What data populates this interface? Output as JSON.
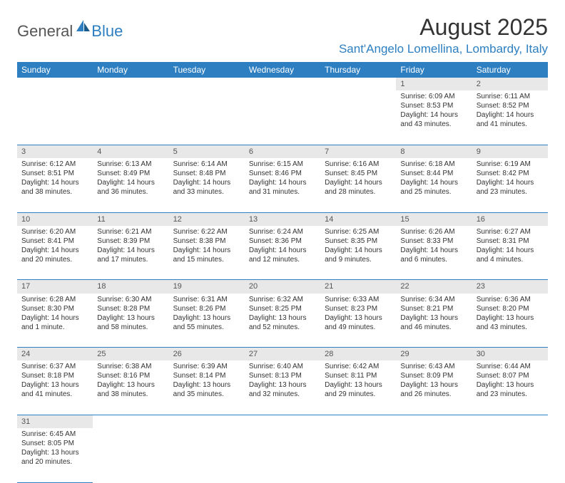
{
  "logo": {
    "part1": "General",
    "part2": "Blue"
  },
  "title": "August 2025",
  "location": "Sant'Angelo Lomellina, Lombardy, Italy",
  "colors": {
    "brand": "#2d7fc1",
    "header_bg": "#2d7fc1",
    "daynum_bg": "#e8e8e8",
    "text": "#333333"
  },
  "weekdays": [
    "Sunday",
    "Monday",
    "Tuesday",
    "Wednesday",
    "Thursday",
    "Friday",
    "Saturday"
  ],
  "weeks": [
    [
      null,
      null,
      null,
      null,
      null,
      {
        "n": "1",
        "sr": "Sunrise: 6:09 AM",
        "ss": "Sunset: 8:53 PM",
        "d1": "Daylight: 14 hours",
        "d2": "and 43 minutes."
      },
      {
        "n": "2",
        "sr": "Sunrise: 6:11 AM",
        "ss": "Sunset: 8:52 PM",
        "d1": "Daylight: 14 hours",
        "d2": "and 41 minutes."
      }
    ],
    [
      {
        "n": "3",
        "sr": "Sunrise: 6:12 AM",
        "ss": "Sunset: 8:51 PM",
        "d1": "Daylight: 14 hours",
        "d2": "and 38 minutes."
      },
      {
        "n": "4",
        "sr": "Sunrise: 6:13 AM",
        "ss": "Sunset: 8:49 PM",
        "d1": "Daylight: 14 hours",
        "d2": "and 36 minutes."
      },
      {
        "n": "5",
        "sr": "Sunrise: 6:14 AM",
        "ss": "Sunset: 8:48 PM",
        "d1": "Daylight: 14 hours",
        "d2": "and 33 minutes."
      },
      {
        "n": "6",
        "sr": "Sunrise: 6:15 AM",
        "ss": "Sunset: 8:46 PM",
        "d1": "Daylight: 14 hours",
        "d2": "and 31 minutes."
      },
      {
        "n": "7",
        "sr": "Sunrise: 6:16 AM",
        "ss": "Sunset: 8:45 PM",
        "d1": "Daylight: 14 hours",
        "d2": "and 28 minutes."
      },
      {
        "n": "8",
        "sr": "Sunrise: 6:18 AM",
        "ss": "Sunset: 8:44 PM",
        "d1": "Daylight: 14 hours",
        "d2": "and 25 minutes."
      },
      {
        "n": "9",
        "sr": "Sunrise: 6:19 AM",
        "ss": "Sunset: 8:42 PM",
        "d1": "Daylight: 14 hours",
        "d2": "and 23 minutes."
      }
    ],
    [
      {
        "n": "10",
        "sr": "Sunrise: 6:20 AM",
        "ss": "Sunset: 8:41 PM",
        "d1": "Daylight: 14 hours",
        "d2": "and 20 minutes."
      },
      {
        "n": "11",
        "sr": "Sunrise: 6:21 AM",
        "ss": "Sunset: 8:39 PM",
        "d1": "Daylight: 14 hours",
        "d2": "and 17 minutes."
      },
      {
        "n": "12",
        "sr": "Sunrise: 6:22 AM",
        "ss": "Sunset: 8:38 PM",
        "d1": "Daylight: 14 hours",
        "d2": "and 15 minutes."
      },
      {
        "n": "13",
        "sr": "Sunrise: 6:24 AM",
        "ss": "Sunset: 8:36 PM",
        "d1": "Daylight: 14 hours",
        "d2": "and 12 minutes."
      },
      {
        "n": "14",
        "sr": "Sunrise: 6:25 AM",
        "ss": "Sunset: 8:35 PM",
        "d1": "Daylight: 14 hours",
        "d2": "and 9 minutes."
      },
      {
        "n": "15",
        "sr": "Sunrise: 6:26 AM",
        "ss": "Sunset: 8:33 PM",
        "d1": "Daylight: 14 hours",
        "d2": "and 6 minutes."
      },
      {
        "n": "16",
        "sr": "Sunrise: 6:27 AM",
        "ss": "Sunset: 8:31 PM",
        "d1": "Daylight: 14 hours",
        "d2": "and 4 minutes."
      }
    ],
    [
      {
        "n": "17",
        "sr": "Sunrise: 6:28 AM",
        "ss": "Sunset: 8:30 PM",
        "d1": "Daylight: 14 hours",
        "d2": "and 1 minute."
      },
      {
        "n": "18",
        "sr": "Sunrise: 6:30 AM",
        "ss": "Sunset: 8:28 PM",
        "d1": "Daylight: 13 hours",
        "d2": "and 58 minutes."
      },
      {
        "n": "19",
        "sr": "Sunrise: 6:31 AM",
        "ss": "Sunset: 8:26 PM",
        "d1": "Daylight: 13 hours",
        "d2": "and 55 minutes."
      },
      {
        "n": "20",
        "sr": "Sunrise: 6:32 AM",
        "ss": "Sunset: 8:25 PM",
        "d1": "Daylight: 13 hours",
        "d2": "and 52 minutes."
      },
      {
        "n": "21",
        "sr": "Sunrise: 6:33 AM",
        "ss": "Sunset: 8:23 PM",
        "d1": "Daylight: 13 hours",
        "d2": "and 49 minutes."
      },
      {
        "n": "22",
        "sr": "Sunrise: 6:34 AM",
        "ss": "Sunset: 8:21 PM",
        "d1": "Daylight: 13 hours",
        "d2": "and 46 minutes."
      },
      {
        "n": "23",
        "sr": "Sunrise: 6:36 AM",
        "ss": "Sunset: 8:20 PM",
        "d1": "Daylight: 13 hours",
        "d2": "and 43 minutes."
      }
    ],
    [
      {
        "n": "24",
        "sr": "Sunrise: 6:37 AM",
        "ss": "Sunset: 8:18 PM",
        "d1": "Daylight: 13 hours",
        "d2": "and 41 minutes."
      },
      {
        "n": "25",
        "sr": "Sunrise: 6:38 AM",
        "ss": "Sunset: 8:16 PM",
        "d1": "Daylight: 13 hours",
        "d2": "and 38 minutes."
      },
      {
        "n": "26",
        "sr": "Sunrise: 6:39 AM",
        "ss": "Sunset: 8:14 PM",
        "d1": "Daylight: 13 hours",
        "d2": "and 35 minutes."
      },
      {
        "n": "27",
        "sr": "Sunrise: 6:40 AM",
        "ss": "Sunset: 8:13 PM",
        "d1": "Daylight: 13 hours",
        "d2": "and 32 minutes."
      },
      {
        "n": "28",
        "sr": "Sunrise: 6:42 AM",
        "ss": "Sunset: 8:11 PM",
        "d1": "Daylight: 13 hours",
        "d2": "and 29 minutes."
      },
      {
        "n": "29",
        "sr": "Sunrise: 6:43 AM",
        "ss": "Sunset: 8:09 PM",
        "d1": "Daylight: 13 hours",
        "d2": "and 26 minutes."
      },
      {
        "n": "30",
        "sr": "Sunrise: 6:44 AM",
        "ss": "Sunset: 8:07 PM",
        "d1": "Daylight: 13 hours",
        "d2": "and 23 minutes."
      }
    ],
    [
      {
        "n": "31",
        "sr": "Sunrise: 6:45 AM",
        "ss": "Sunset: 8:05 PM",
        "d1": "Daylight: 13 hours",
        "d2": "and 20 minutes."
      },
      null,
      null,
      null,
      null,
      null,
      null
    ]
  ]
}
